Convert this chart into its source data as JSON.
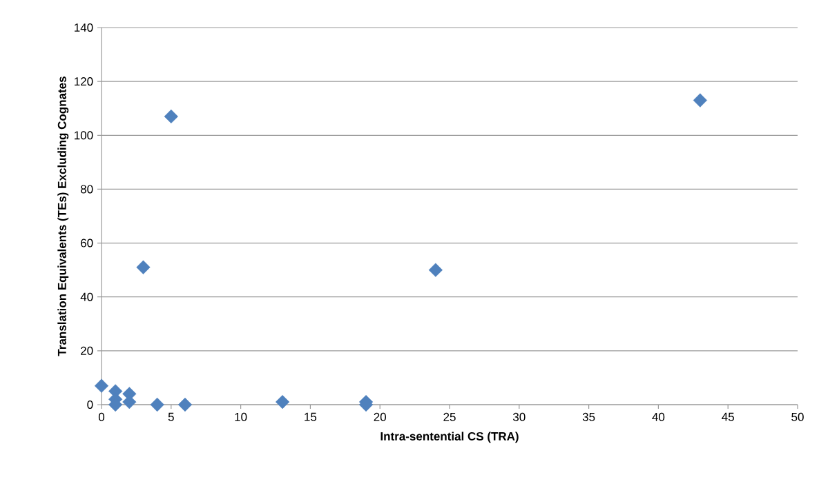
{
  "chart_data": {
    "type": "scatter",
    "xlabel": "Intra-sentential CS (TRA)",
    "ylabel": "Translation Equivalents (TEs) Excluding Cognates",
    "x": [
      0,
      1,
      1,
      1,
      2,
      2,
      3,
      4,
      5,
      6,
      13,
      19,
      19,
      24,
      43
    ],
    "values": [
      7,
      5,
      2,
      0,
      4,
      1,
      51,
      0,
      107,
      0,
      1,
      1,
      0,
      50,
      113
    ],
    "color": "#4f81bd",
    "marker": "diamond",
    "xlim": [
      0,
      50
    ],
    "xticks": [
      0,
      5,
      10,
      15,
      20,
      25,
      30,
      35,
      40,
      45,
      50
    ],
    "ylim": [
      0,
      140
    ],
    "yticks": [
      0,
      20,
      40,
      60,
      80,
      100,
      120,
      140
    ],
    "grid": "y"
  }
}
